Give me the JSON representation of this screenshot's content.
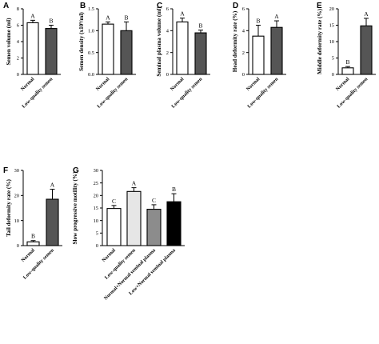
{
  "chart_data": [
    {
      "type": "bar",
      "panel": "A",
      "ylabel": "Semen volume (ml)",
      "categories": [
        "Normal",
        "Low-quality semen"
      ],
      "values": [
        6.3,
        5.6
      ],
      "errors": [
        0.3,
        0.4
      ],
      "sig": [
        "A",
        "B"
      ],
      "colors": [
        "#ffffff",
        "#555555"
      ],
      "ylim": [
        0,
        8
      ],
      "yticks": [
        0,
        2,
        4,
        6,
        8
      ],
      "ytick_labels": [
        "0",
        "2",
        "4",
        "6",
        "8"
      ]
    },
    {
      "type": "bar",
      "panel": "B",
      "ylabel": "Semen density (x10⁹/ml)",
      "categories": [
        "Normal",
        "Low-quality semen"
      ],
      "values": [
        1.15,
        1.0
      ],
      "errors": [
        0.05,
        0.2
      ],
      "sig": [
        "A",
        "B"
      ],
      "colors": [
        "#ffffff",
        "#555555"
      ],
      "ylim": [
        0,
        1.5
      ],
      "yticks": [
        0,
        0.5,
        1.0,
        1.5
      ],
      "ytick_labels": [
        "0.0",
        "0.5",
        "1.0",
        "1.5"
      ]
    },
    {
      "type": "bar",
      "panel": "C",
      "ylabel": "Seminal plasma volume (ml)",
      "categories": [
        "Normal",
        "Low-quality semen"
      ],
      "values": [
        4.8,
        3.8
      ],
      "errors": [
        0.35,
        0.25
      ],
      "sig": [
        "A",
        "B"
      ],
      "colors": [
        "#ffffff",
        "#555555"
      ],
      "ylim": [
        0,
        6
      ],
      "yticks": [
        0,
        2,
        4,
        6
      ],
      "ytick_labels": [
        "0",
        "2",
        "4",
        "6"
      ]
    },
    {
      "type": "bar",
      "panel": "D",
      "ylabel": "Head deformity rate (%)",
      "categories": [
        "Normal",
        "Low-quality semen"
      ],
      "values": [
        3.5,
        4.3
      ],
      "errors": [
        1.0,
        0.6
      ],
      "sig": [
        "B",
        "A"
      ],
      "colors": [
        "#ffffff",
        "#555555"
      ],
      "ylim": [
        0,
        6
      ],
      "yticks": [
        0,
        2,
        4,
        6
      ],
      "ytick_labels": [
        "0",
        "2",
        "4",
        "6"
      ]
    },
    {
      "type": "bar",
      "panel": "E",
      "ylabel": "Middle deformity rate (%)",
      "categories": [
        "Normal",
        "Low-quality semen"
      ],
      "values": [
        2.0,
        14.8
      ],
      "errors": [
        0.4,
        2.3
      ],
      "sig": [
        "B",
        "A"
      ],
      "colors": [
        "#ffffff",
        "#555555"
      ],
      "ylim": [
        0,
        20
      ],
      "yticks": [
        0,
        5,
        10,
        15,
        20
      ],
      "ytick_labels": [
        "0",
        "5",
        "10",
        "15",
        "20"
      ]
    },
    {
      "type": "bar",
      "panel": "F",
      "ylabel": "Tail deformity rate (%)",
      "categories": [
        "Normal",
        "Low-quality semen"
      ],
      "values": [
        1.5,
        18.5
      ],
      "errors": [
        0.5,
        4.0
      ],
      "sig": [
        "B",
        "A"
      ],
      "colors": [
        "#ffffff",
        "#555555"
      ],
      "ylim": [
        0,
        30
      ],
      "yticks": [
        0,
        10,
        20,
        30
      ],
      "ytick_labels": [
        "0",
        "10",
        "20",
        "30"
      ]
    },
    {
      "type": "bar",
      "panel": "G",
      "ylabel": "Slow progressive motility (%)",
      "categories": [
        "Normal",
        "Low-quality semen",
        "Normal+Normal seminal plasma",
        "Low+Normal seminal plasma"
      ],
      "values": [
        14.8,
        21.6,
        14.5,
        17.5
      ],
      "errors": [
        1.2,
        1.5,
        1.8,
        3.2
      ],
      "sig": [
        "C",
        "A",
        "C",
        "B"
      ],
      "colors": [
        "#ffffff",
        "#e6e6e6",
        "#8c8c8c",
        "#000000"
      ],
      "ylim": [
        0,
        30
      ],
      "yticks": [
        0,
        5,
        10,
        15,
        20,
        25,
        30
      ],
      "ytick_labels": [
        "0",
        "5",
        "10",
        "15",
        "20",
        "25",
        "30"
      ]
    }
  ]
}
